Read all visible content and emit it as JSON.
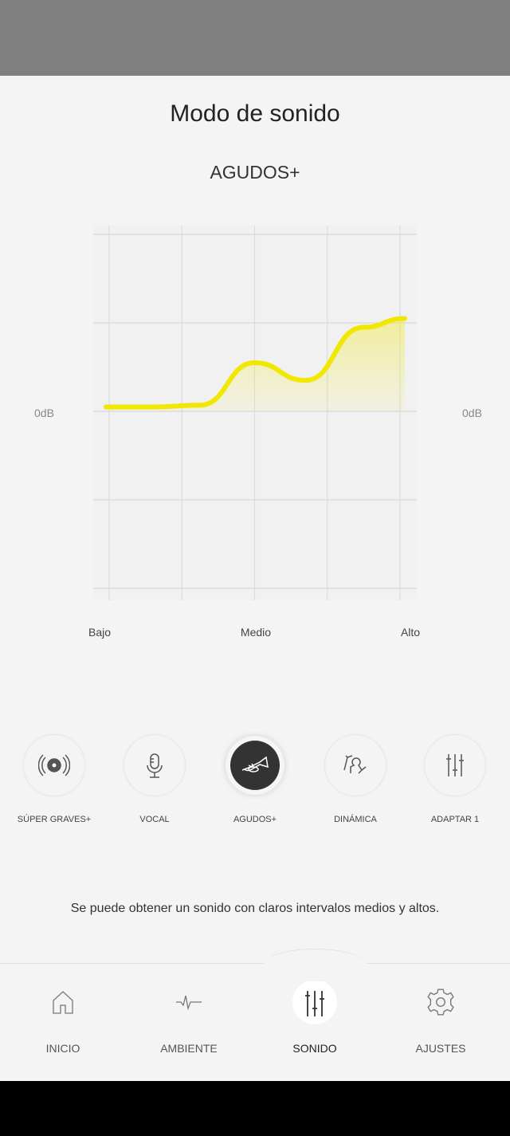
{
  "header": {
    "title": "Modo de sonido",
    "current_mode": "AGUDOS+"
  },
  "chart_data": {
    "type": "line",
    "y_reference_label_left": "0dB",
    "y_reference_label_right": "0dB",
    "x_tick_labels": [
      "Bajo",
      "Medio",
      "Alto"
    ],
    "x": [
      0,
      0.6,
      1.25,
      2,
      2.7,
      3.5,
      4
    ],
    "values": [
      0.05,
      0.05,
      0.07,
      0.55,
      0.35,
      0.95,
      1.05
    ],
    "grid": true,
    "line_color": "#f0e800"
  },
  "modes": [
    {
      "label": "SÚPER GRAVES+",
      "icon": "speaker-disc-icon",
      "active": false
    },
    {
      "label": "VOCAL",
      "icon": "microphone-icon",
      "active": false
    },
    {
      "label": "AGUDOS+",
      "icon": "trumpet-icon",
      "active": true
    },
    {
      "label": "DINÁMICA",
      "icon": "conductor-icon",
      "active": false
    },
    {
      "label": "ADAPTAR 1",
      "icon": "sliders-icon",
      "active": false
    }
  ],
  "description": "Se puede obtener un sonido con claros intervalos medios y altos.",
  "nav": [
    {
      "label": "INICIO",
      "icon": "home-icon",
      "active": false
    },
    {
      "label": "AMBIENTE",
      "icon": "ambient-wave-icon",
      "active": false
    },
    {
      "label": "SONIDO",
      "icon": "sliders-icon",
      "active": true
    },
    {
      "label": "AJUSTES",
      "icon": "gear-icon",
      "active": false
    }
  ]
}
